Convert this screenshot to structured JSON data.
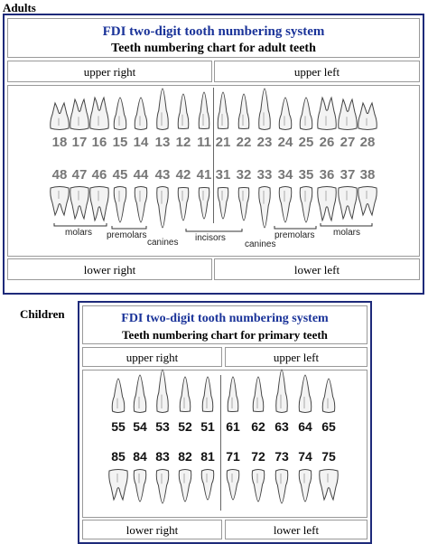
{
  "adults": {
    "section_label": "Adults",
    "title": "FDI two-digit tooth numbering system",
    "subtitle": "Teeth numbering chart for adult teeth",
    "upper_right": "upper right",
    "upper_left": "upper left",
    "lower_right": "lower right",
    "lower_left": "lower left",
    "upper_numbers": [
      "18",
      "17",
      "16",
      "15",
      "14",
      "13",
      "12",
      "11",
      "21",
      "22",
      "23",
      "24",
      "25",
      "26",
      "27",
      "28"
    ],
    "lower_numbers": [
      "48",
      "47",
      "46",
      "45",
      "44",
      "43",
      "42",
      "41",
      "31",
      "32",
      "33",
      "34",
      "35",
      "36",
      "37",
      "38"
    ],
    "groups": {
      "molars_right": "molars",
      "premolars_right": "premolars",
      "canines_right": "canines",
      "incisors": "incisors",
      "canines_left": "canines",
      "premolars_left": "premolars",
      "molars_left": "molars"
    }
  },
  "children": {
    "section_label": "Children",
    "title": "FDI two-digit tooth numbering system",
    "subtitle": "Teeth numbering chart for primary teeth",
    "upper_right": "upper right",
    "upper_left": "upper left",
    "lower_right": "lower right",
    "lower_left": "lower left",
    "upper_numbers": [
      "55",
      "54",
      "53",
      "52",
      "51",
      "61",
      "62",
      "63",
      "64",
      "65"
    ],
    "lower_numbers": [
      "85",
      "84",
      "83",
      "82",
      "81",
      "71",
      "72",
      "73",
      "74",
      "75"
    ]
  }
}
